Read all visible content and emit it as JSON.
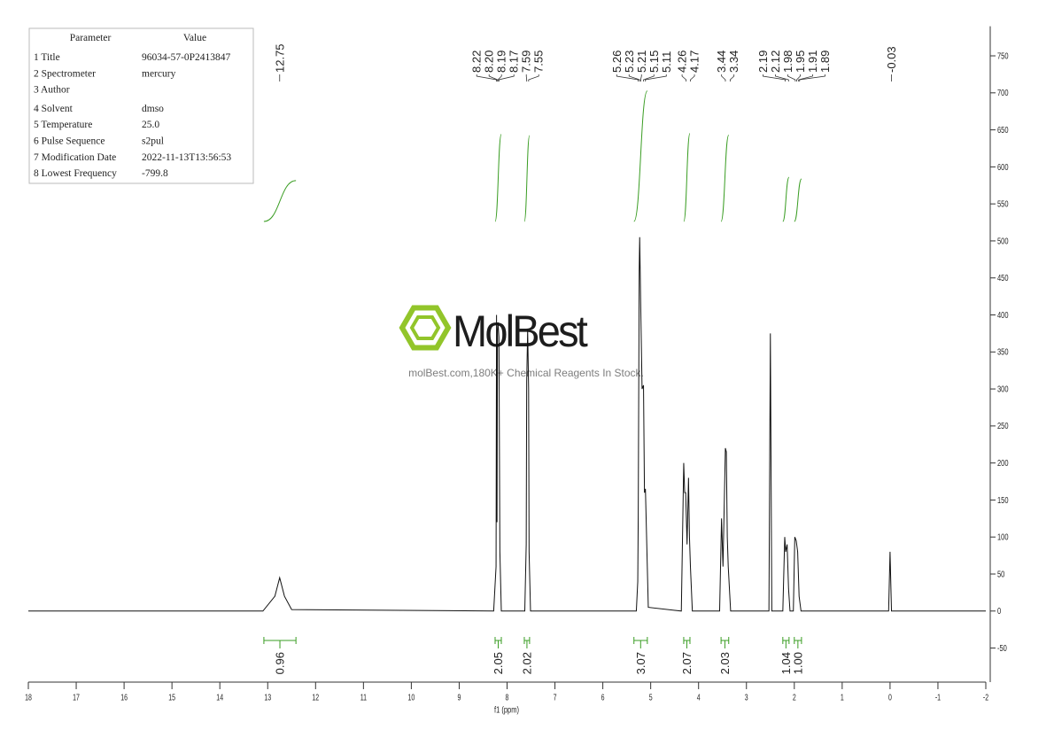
{
  "parameters": {
    "header": [
      "Parameter",
      "Value"
    ],
    "rows": [
      [
        "1 Title",
        "96034-57-0P2413847"
      ],
      [
        "2 Spectrometer",
        "mercury"
      ],
      [
        "3 Author",
        ""
      ],
      [
        "4 Solvent",
        "dmso"
      ],
      [
        "5 Temperature",
        "25.0"
      ],
      [
        "6 Pulse Sequence",
        "s2pul"
      ],
      [
        "7 Modification Date",
        "2022-11-13T13:56:53"
      ],
      [
        "8 Lowest Frequency",
        "-799.8"
      ]
    ]
  },
  "watermark": {
    "brand": "MolBest",
    "tagline": "molBest.com,180K+ Chemical Reagents In Stock."
  },
  "chart_data": {
    "type": "spectrum",
    "xlabel": "f1 (ppm)",
    "color": "#111111",
    "x": [
      18,
      13.1,
      12.85,
      12.75,
      12.65,
      12.5,
      8.28,
      8.23,
      8.22,
      8.21,
      8.2,
      8.19,
      8.17,
      8.15,
      8.12,
      7.63,
      7.6,
      7.59,
      7.57,
      7.55,
      7.54,
      7.51,
      5.3,
      5.27,
      5.26,
      5.24,
      5.23,
      5.21,
      5.18,
      5.15,
      5.13,
      5.11,
      5.05,
      4.36,
      4.31,
      4.29,
      4.27,
      4.24,
      4.21,
      4.19,
      4.17,
      4.13,
      3.56,
      3.52,
      3.49,
      3.44,
      3.42,
      3.4,
      3.38,
      3.33,
      2.53,
      2.5,
      2.47,
      2.24,
      2.2,
      2.18,
      2.15,
      2.12,
      2.09,
      2.02,
      1.99,
      1.96,
      1.93,
      1.9,
      1.86,
      0.03,
      0.0,
      -0.03,
      -2
    ],
    "values": [
      0,
      0,
      20,
      45,
      20,
      2,
      0,
      60,
      400,
      120,
      380,
      390,
      370,
      80,
      0,
      0,
      90,
      310,
      380,
      300,
      80,
      0,
      0,
      40,
      130,
      460,
      505,
      420,
      300,
      305,
      160,
      165,
      5,
      0,
      200,
      160,
      160,
      90,
      180,
      100,
      60,
      0,
      0,
      125,
      60,
      220,
      215,
      100,
      60,
      0,
      0,
      375,
      0,
      0,
      100,
      80,
      90,
      30,
      0,
      0,
      100,
      95,
      80,
      20,
      0,
      0,
      80,
      0,
      0
    ],
    "xlim": [
      18,
      -2
    ],
    "xticks": [
      18,
      17,
      16,
      15,
      14,
      13,
      12,
      11,
      10,
      9,
      8,
      7,
      6,
      5,
      4,
      3,
      2,
      1,
      0,
      -1,
      -2
    ],
    "ylim": [
      -96,
      790
    ],
    "yticks": [
      -50,
      0,
      50,
      100,
      150,
      200,
      250,
      300,
      350,
      400,
      450,
      500,
      550,
      600,
      650,
      700,
      750
    ],
    "y_axis_side": "right",
    "peaks": {
      "values": [
        12.75,
        8.22,
        8.2,
        8.19,
        8.17,
        7.59,
        7.55,
        5.26,
        5.23,
        5.21,
        5.15,
        5.11,
        4.26,
        4.17,
        3.44,
        3.34,
        2.19,
        2.12,
        1.98,
        1.95,
        1.91,
        1.89,
        -0.03
      ],
      "value_labels": [
        "12.75",
        "8.22",
        "8.20",
        "8.19",
        "8.17",
        "7.59",
        "7.55",
        "5.26",
        "5.23",
        "5.21",
        "5.15",
        "5.11",
        "4.26",
        "4.17",
        "3.44",
        "3.34",
        "2.19",
        "2.12",
        "1.98",
        "1.95",
        "1.91",
        "1.89",
        "-0.03"
      ]
    },
    "integrals": {
      "color": "#3a9d23",
      "ranges": [
        [
          13.08,
          12.41
        ],
        [
          8.25,
          8.12
        ],
        [
          7.64,
          7.53
        ],
        [
          5.35,
          5.07
        ],
        [
          4.31,
          4.18
        ],
        [
          3.53,
          3.37
        ],
        [
          2.24,
          2.11
        ],
        [
          2.0,
          1.85
        ]
      ],
      "values": [
        0.96,
        2.05,
        2.02,
        3.07,
        2.07,
        2.03,
        1.04,
        1.0
      ],
      "value_labels": [
        "0.96",
        "2.05",
        "2.02",
        "3.07",
        "2.07",
        "2.03",
        "1.04",
        "1.00"
      ]
    }
  }
}
